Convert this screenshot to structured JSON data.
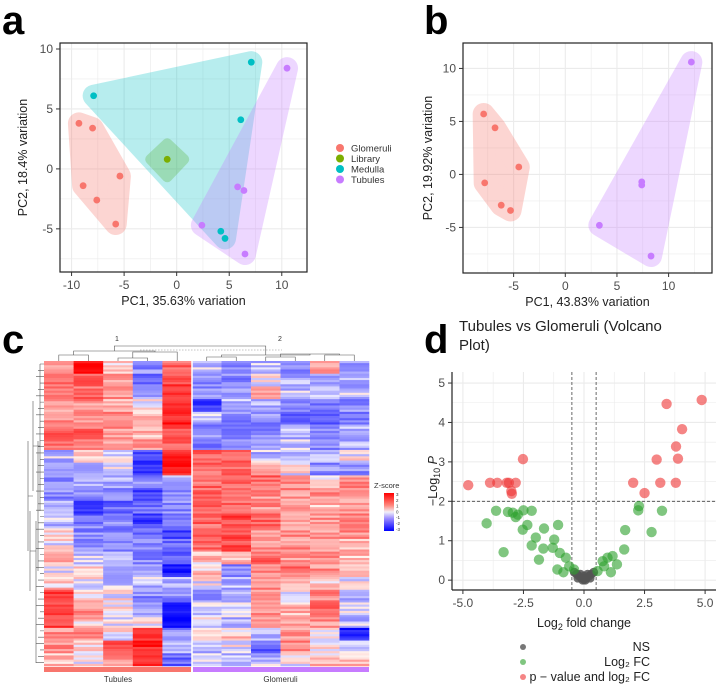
{
  "panel_labels": [
    "a",
    "b",
    "c",
    "d"
  ],
  "colors": {
    "Glomeruli": "#F8766D",
    "Library": "#7CAE00",
    "Medulla": "#00BFC4",
    "Tubules": "#C77CFF",
    "NS": "#555555",
    "Log2FC": "#2ca02c",
    "Sig": "#ee3333"
  },
  "chart_data": [
    {
      "id": "a",
      "type": "scatter",
      "xlabel": "PC1, 35.63% variation",
      "ylabel": "PC2, 18.4% variation",
      "xlim": [
        -11.1,
        12.4
      ],
      "ylim": [
        -8.6,
        10.5
      ],
      "xticks": [
        -10,
        -5,
        0,
        5,
        10
      ],
      "yticks": [
        -5,
        0,
        5,
        10
      ],
      "grid": true,
      "legend": {
        "position": "right",
        "entries": [
          "Glomeruli",
          "Library",
          "Medulla",
          "Tubules"
        ]
      },
      "series": [
        {
          "name": "Glomeruli",
          "points": [
            [
              -9.3,
              3.8
            ],
            [
              -8,
              3.4
            ],
            [
              -8.9,
              -1.4
            ],
            [
              -7.6,
              -2.6
            ],
            [
              -5.4,
              -0.6
            ],
            [
              -5.8,
              -4.6
            ]
          ]
        },
        {
          "name": "Library",
          "points": [
            [
              -0.9,
              0.8
            ]
          ]
        },
        {
          "name": "Medulla",
          "points": [
            [
              -7.9,
              6.1
            ],
            [
              7.1,
              8.9
            ],
            [
              6.1,
              4.1
            ],
            [
              4.2,
              -5.2
            ],
            [
              4.6,
              -5.8
            ]
          ]
        },
        {
          "name": "Tubules",
          "points": [
            [
              10.5,
              8.4
            ],
            [
              5.8,
              -1.5
            ],
            [
              6.4,
              -1.8
            ],
            [
              2.4,
              -4.7
            ],
            [
              6.5,
              -7.1
            ]
          ]
        }
      ]
    },
    {
      "id": "b",
      "type": "scatter",
      "xlabel": "PC1, 43.83% variation",
      "ylabel": "PC2, 19.92% variation",
      "xlim": [
        -9.9,
        14.2
      ],
      "ylim": [
        -9.3,
        12.4
      ],
      "xticks": [
        -5,
        0,
        5,
        10
      ],
      "yticks": [
        -5,
        0,
        5,
        10
      ],
      "grid": true,
      "series": [
        {
          "name": "Glomeruli",
          "points": [
            [
              -7.9,
              5.7
            ],
            [
              -6.8,
              4.4
            ],
            [
              -4.5,
              0.7
            ],
            [
              -7.8,
              -0.8
            ],
            [
              -6.2,
              -2.9
            ],
            [
              -5.3,
              -3.4
            ]
          ]
        },
        {
          "name": "Tubules",
          "points": [
            [
              12.2,
              10.6
            ],
            [
              7.4,
              -0.7
            ],
            [
              7.4,
              -1.0
            ],
            [
              3.3,
              -4.8
            ],
            [
              8.3,
              -7.7
            ]
          ]
        }
      ]
    },
    {
      "id": "c",
      "type": "heatmap",
      "column_groups": [
        {
          "label": "Tubules",
          "cluster": "1",
          "n": 5
        },
        {
          "label": "Glomeruli",
          "cluster": "2",
          "n": 6
        }
      ],
      "legend_title": "Z-score",
      "legend_ticks": [
        3,
        2,
        1,
        0,
        -1,
        -2,
        -3
      ],
      "rows": [
        [
          1,
          3,
          0.5,
          -1,
          1.5,
          -0.5,
          -1,
          -0.5,
          -1,
          1,
          -1
        ],
        [
          1.5,
          1.5,
          1,
          -1.5,
          2,
          -1,
          -1,
          0,
          -0.5,
          -0.5,
          -0.5
        ],
        [
          1.5,
          1.5,
          1,
          -0.5,
          2,
          -1,
          -1,
          0.5,
          -0.5,
          -0.5,
          -0.5
        ],
        [
          1,
          1,
          0.5,
          0,
          2.5,
          -2,
          -0.5,
          -0.5,
          -1,
          -1.5,
          -1
        ],
        [
          1,
          1,
          1,
          0.5,
          2.5,
          -0.5,
          -1,
          -1,
          -1.5,
          -1.5,
          -1
        ],
        [
          1.5,
          1.5,
          1,
          0.5,
          2,
          -1,
          -1,
          -1,
          -0.5,
          -1,
          -0.5
        ],
        [
          1.5,
          1.5,
          1,
          1,
          1.5,
          -1.5,
          -1,
          -0.5,
          -0.5,
          -1,
          -0.5
        ],
        [
          -0.5,
          0.5,
          0,
          -2,
          2.5,
          1.5,
          1.5,
          -0.5,
          -0.5,
          -0.5,
          0
        ],
        [
          -0.5,
          -0.5,
          0,
          -2,
          2.5,
          1.5,
          1.5,
          0.5,
          0,
          -1,
          -1
        ],
        [
          -1,
          -0.5,
          -0.5,
          -1,
          -0.5,
          1.5,
          1.5,
          1.5,
          1,
          0,
          1
        ],
        [
          -1,
          -1,
          -1,
          -2,
          -1,
          1.5,
          1.5,
          1,
          1,
          1,
          1
        ],
        [
          -0.5,
          -2,
          -1.5,
          -1.5,
          -1,
          1.5,
          1.5,
          1,
          1,
          0.5,
          1
        ],
        [
          -0.5,
          -1.5,
          -1,
          -2,
          -1.5,
          1.5,
          2,
          1.5,
          1,
          1,
          1
        ],
        [
          0,
          -1,
          -1,
          -1.5,
          -2,
          1.5,
          2,
          1,
          1,
          1,
          1
        ],
        [
          0,
          -1,
          -1,
          -1,
          -1.5,
          1.5,
          2,
          1,
          1,
          1,
          0.5
        ],
        [
          0.5,
          -0.5,
          -0.5,
          -1,
          -1.5,
          0.5,
          0.5,
          1.5,
          1,
          1,
          0.5
        ],
        [
          0,
          0.5,
          -1,
          -1,
          -2.5,
          0.5,
          -1,
          1,
          1.5,
          1,
          0.5
        ],
        [
          0.5,
          0,
          -0.5,
          -0.5,
          -0.5,
          0,
          -0.5,
          1,
          0.5,
          0.5,
          0
        ],
        [
          2,
          0.5,
          0,
          -1,
          -1,
          -1,
          -0.5,
          1,
          0,
          1,
          -0.5
        ],
        [
          2,
          1,
          0,
          -0.5,
          -2.5,
          -0.5,
          0,
          1,
          0.5,
          1.5,
          0
        ],
        [
          2,
          0.5,
          0,
          0,
          -3,
          0,
          -0.5,
          1,
          1,
          1,
          -0.5
        ],
        [
          1,
          1,
          0,
          2,
          -1,
          0,
          0.5,
          -0.5,
          1,
          0,
          -2.5
        ],
        [
          1,
          0.5,
          2,
          2.5,
          -0.5,
          -0.5,
          0,
          -1.5,
          1,
          0,
          -0.5
        ],
        [
          0.5,
          0,
          1,
          2.5,
          -1.5,
          -0.5,
          -0.5,
          -0.5,
          0,
          0.5,
          0.5
        ]
      ]
    },
    {
      "id": "d",
      "type": "scatter",
      "title": "Tubules vs Glomeruli (Volcano Plot)",
      "title_lines": [
        "Tubules vs Glomeruli (Volcano",
        "Plot)"
      ],
      "xlabel": "Log2 fold change",
      "ylabel": "-Log10 P",
      "xlim": [
        -5.45,
        5.45
      ],
      "ylim": [
        -0.25,
        5.28
      ],
      "xticks": [
        -5.0,
        -2.5,
        0.0,
        2.5,
        5.0
      ],
      "xtick_labels": [
        "-5.0",
        "-2.5",
        "0.0",
        "2.5",
        "5.0"
      ],
      "yticks": [
        0,
        1,
        2,
        3,
        4,
        5
      ],
      "grid": true,
      "thresholds": {
        "fc": [
          -0.5,
          0.5
        ],
        "p": 2
      },
      "legend": {
        "position": "bottom",
        "entries": [
          "NS",
          "Log2 FC",
          "p − value and log2 FC"
        ]
      },
      "series": [
        {
          "name": "NS",
          "points": [
            [
              -0.4,
              0.2
            ],
            [
              -0.3,
              0.15
            ],
            [
              -0.2,
              0.1
            ],
            [
              -0.1,
              0.05
            ],
            [
              0,
              0.02
            ],
            [
              0.1,
              0.05
            ],
            [
              0.2,
              0.1
            ],
            [
              0.3,
              0.15
            ],
            [
              0.4,
              0.2
            ],
            [
              -0.25,
              0.05
            ],
            [
              0.25,
              0.05
            ],
            [
              -0.15,
              0.15
            ],
            [
              0.15,
              0.15
            ],
            [
              0,
              0.1
            ],
            [
              -0.05,
              0
            ],
            [
              0.05,
              0
            ]
          ]
        },
        {
          "name": "Log2 FC",
          "points": [
            [
              -4.02,
              1.44
            ],
            [
              -3.63,
              1.76
            ],
            [
              -3.14,
              1.73
            ],
            [
              -2.94,
              1.71
            ],
            [
              -2.82,
              1.6
            ],
            [
              -2.73,
              1.66
            ],
            [
              -2.5,
              1.77
            ],
            [
              -2.16,
              1.76
            ],
            [
              -2.34,
              1.4
            ],
            [
              -2.53,
              1.28
            ],
            [
              -3.32,
              0.71
            ],
            [
              -1.99,
              1.08
            ],
            [
              -2.16,
              0.88
            ],
            [
              -1.65,
              1.31
            ],
            [
              -1.68,
              0.8
            ],
            [
              -1.86,
              0.52
            ],
            [
              -1.23,
              1.03
            ],
            [
              -1.07,
              1.4
            ],
            [
              -1.29,
              0.82
            ],
            [
              -1.0,
              0.69
            ],
            [
              -0.75,
              0.57
            ],
            [
              -1.1,
              0.27
            ],
            [
              -0.85,
              0.2
            ],
            [
              -0.61,
              0.35
            ],
            [
              -0.41,
              0.27
            ],
            [
              0.56,
              0.23
            ],
            [
              0.77,
              0.48
            ],
            [
              0.97,
              0.57
            ],
            [
              1.18,
              0.61
            ],
            [
              1.36,
              0.4
            ],
            [
              1.11,
              0.2
            ],
            [
              1.66,
              0.78
            ],
            [
              1.7,
              1.27
            ],
            [
              2.24,
              1.77
            ],
            [
              2.27,
              1.88
            ],
            [
              2.79,
              1.22
            ],
            [
              3.22,
              1.76
            ],
            [
              0.83,
              0.35
            ]
          ]
        },
        {
          "name": "p − value and log2 FC",
          "points": [
            [
              -4.78,
              2.41
            ],
            [
              -3.88,
              2.47
            ],
            [
              -3.58,
              2.47
            ],
            [
              -3.19,
              2.47
            ],
            [
              -3.1,
              2.47
            ],
            [
              -2.82,
              2.47
            ],
            [
              -3.0,
              2.26
            ],
            [
              -2.98,
              2.19
            ],
            [
              -2.52,
              3.07
            ],
            [
              2.03,
              2.47
            ],
            [
              2.5,
              2.21
            ],
            [
              3.0,
              3.06
            ],
            [
              3.15,
              2.47
            ],
            [
              3.41,
              4.47
            ],
            [
              3.79,
              2.47
            ],
            [
              3.8,
              3.39
            ],
            [
              3.88,
              3.08
            ],
            [
              4.05,
              3.83
            ],
            [
              4.86,
              4.57
            ]
          ]
        }
      ]
    }
  ]
}
